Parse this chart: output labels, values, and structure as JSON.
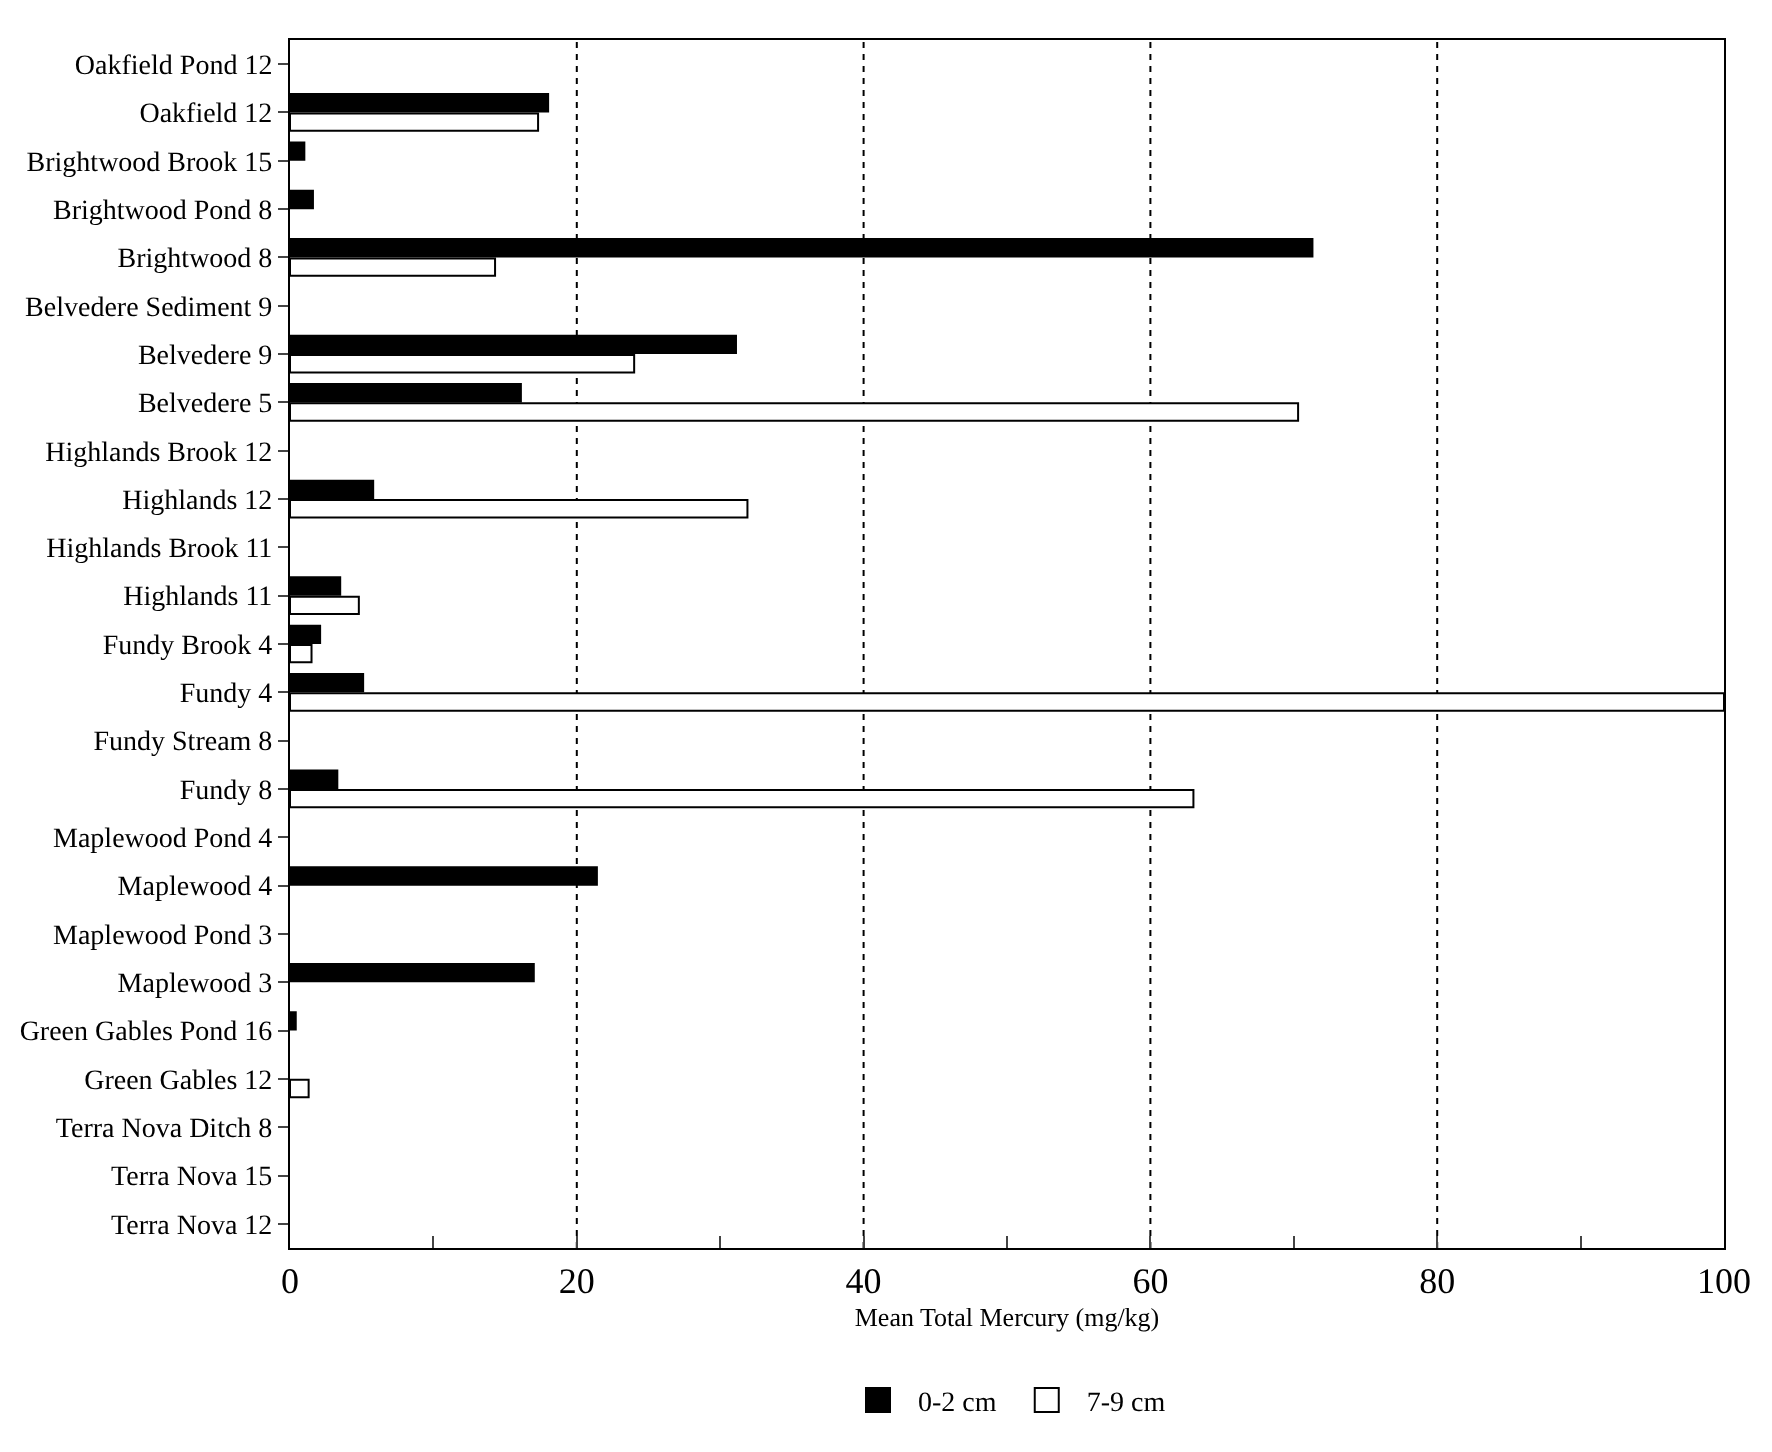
{
  "chart_data": {
    "type": "bar",
    "orientation": "horizontal",
    "xlabel": "Mean Total Mercury (mg/kg)",
    "categories": [
      "Oakfield Pond 12",
      "Oakfield 12",
      "Brightwood Brook 15",
      "Brightwood Pond 8",
      "Brightwood 8",
      "Belvedere Sediment 9",
      "Belvedere 9",
      "Belvedere 5",
      "Highlands Brook 12",
      "Highlands 12",
      "Highlands Brook 11",
      "Highlands 11",
      "Fundy Brook 4",
      "Fundy 4",
      "Fundy Stream 8",
      "Fundy 8",
      "Maplewood Pond 4",
      "Maplewood 4",
      "Maplewood Pond 3",
      "Maplewood 3",
      "Green Gables Pond 16",
      "Green Gables 12",
      "Terra Nova Ditch 8",
      "Terra Nova 15",
      "Terra Nova 12"
    ],
    "series": [
      {
        "name": "0-2 cm",
        "color": "#000000",
        "values": [
          null,
          18.0,
          1.0,
          1.6,
          71.3,
          null,
          31.1,
          16.1,
          null,
          5.8,
          null,
          3.5,
          2.1,
          5.1,
          null,
          3.3,
          null,
          21.4,
          null,
          17.0,
          0.4,
          null,
          null,
          null,
          null
        ]
      },
      {
        "name": "7-9 cm",
        "color": "#ffffff",
        "values": [
          null,
          17.3,
          null,
          null,
          14.3,
          null,
          24.0,
          70.3,
          null,
          31.9,
          null,
          4.8,
          1.5,
          100,
          null,
          63.0,
          null,
          null,
          null,
          null,
          null,
          1.3,
          null,
          null,
          null
        ]
      }
    ],
    "xlim": [
      0,
      100
    ],
    "xticks": [
      0,
      {
        "value": 10,
        "label": null
      },
      20,
      {
        "value": 30,
        "label": null
      },
      40,
      {
        "value": 50,
        "label": null
      },
      60,
      {
        "value": 70,
        "label": null
      },
      80,
      {
        "value": 90,
        "label": null
      },
      100
    ],
    "grid": "x",
    "line_style": "dotted",
    "legend": "bottom"
  }
}
